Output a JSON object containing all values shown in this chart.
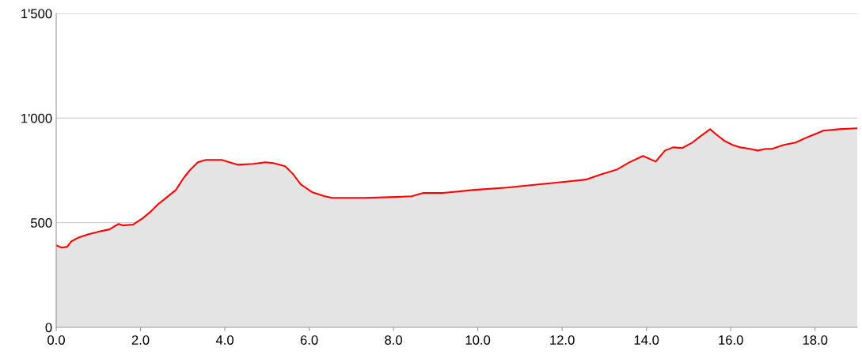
{
  "chart_data": {
    "type": "area",
    "x": [
      0,
      0.13,
      0.26,
      0.36,
      0.54,
      0.77,
      1.01,
      1.26,
      1.48,
      1.58,
      1.82,
      2.05,
      2.23,
      2.42,
      2.61,
      2.84,
      3.02,
      3.17,
      3.36,
      3.55,
      3.74,
      3.93,
      4.11,
      4.3,
      4.68,
      4.96,
      5.15,
      5.43,
      5.62,
      5.8,
      6.08,
      6.37,
      6.55,
      6.93,
      7.31,
      8.06,
      8.43,
      8.71,
      9.18,
      9.93,
      10.69,
      11.44,
      12.19,
      12.56,
      12.94,
      13.31,
      13.6,
      13.92,
      14.22,
      14.44,
      14.63,
      14.85,
      15.09,
      15.28,
      15.51,
      15.66,
      15.85,
      16.04,
      16.23,
      16.45,
      16.64,
      16.83,
      16.98,
      17.26,
      17.54,
      17.82,
      18.2,
      18.57,
      19.0
    ],
    "series": [
      {
        "color": "#ff0000",
        "values": [
          392,
          381,
          385,
          411,
          430,
          445,
          457,
          468,
          494,
          487,
          491,
          521,
          551,
          589,
          619,
          657,
          713,
          751,
          789,
          800,
          800,
          800,
          789,
          777,
          781,
          789,
          785,
          770,
          732,
          683,
          645,
          626,
          619,
          619,
          619,
          623,
          626,
          642,
          642,
          657,
          668,
          683,
          698,
          706,
          732,
          755,
          789,
          819,
          792,
          845,
          860,
          857,
          883,
          913,
          947,
          921,
          891,
          872,
          860,
          853,
          845,
          853,
          853,
          872,
          883,
          909,
          940,
          947,
          951
        ]
      }
    ],
    "xlim": [
      0,
      19.0
    ],
    "xticks": [
      {
        "value": 0,
        "label": "0.0"
      },
      {
        "value": 2,
        "label": "2.0"
      },
      {
        "value": 4,
        "label": "4.0"
      },
      {
        "value": 6,
        "label": "6.0"
      },
      {
        "value": 8,
        "label": "8.0"
      },
      {
        "value": 10,
        "label": "10.0"
      },
      {
        "value": 12,
        "label": "12.0"
      },
      {
        "value": 14,
        "label": "14.0"
      },
      {
        "value": 16,
        "label": "16.0"
      },
      {
        "value": 18,
        "label": "18.0"
      }
    ],
    "ylim": [
      0,
      1500
    ],
    "yticks": [
      0,
      500,
      {
        "value": 1000,
        "label": "1'000"
      },
      {
        "value": 1500,
        "label": "1'500"
      }
    ],
    "grid": "y"
  }
}
